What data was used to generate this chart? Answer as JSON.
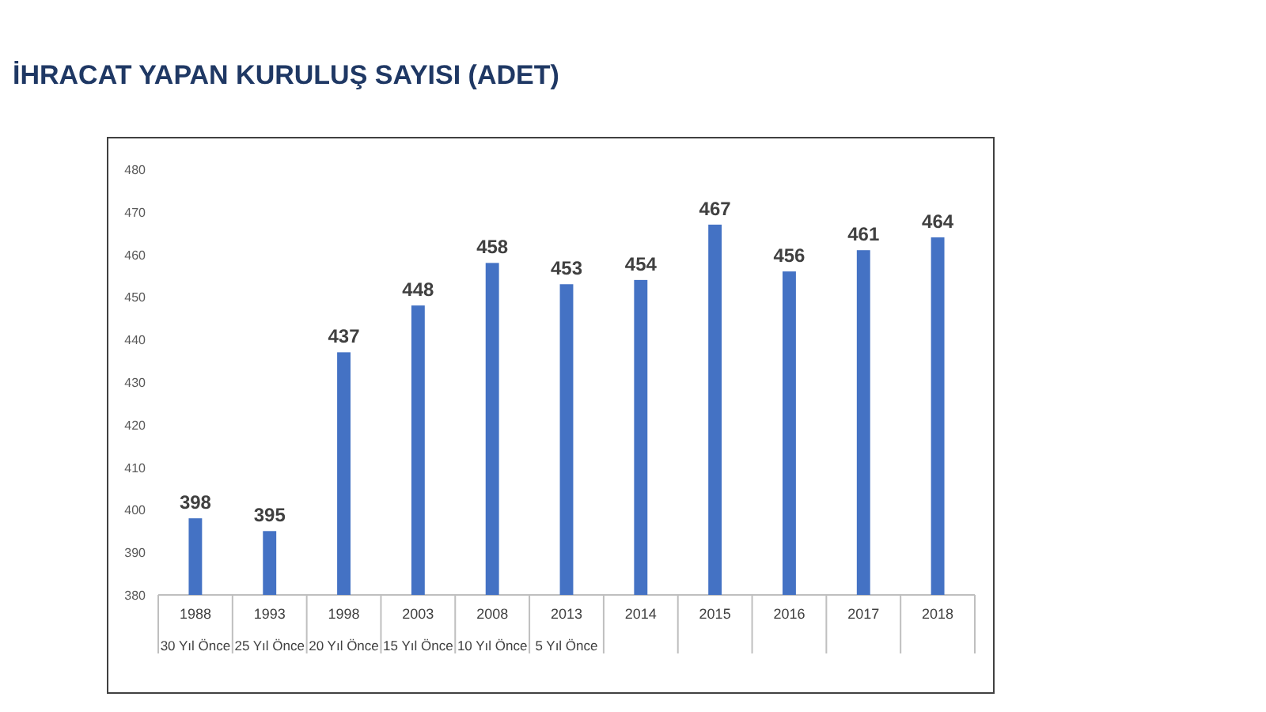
{
  "chart_data": {
    "type": "bar",
    "title": "İHRACAT YAPAN KURULUŞ SAYISI (ADET)",
    "categories": [
      "1988",
      "1993",
      "1998",
      "2003",
      "2008",
      "2013",
      "2014",
      "2015",
      "2016",
      "2017",
      "2018"
    ],
    "values": [
      398,
      395,
      437,
      448,
      458,
      453,
      454,
      467,
      456,
      461,
      464
    ],
    "color": "#4472c4",
    "ylim": [
      380,
      480
    ],
    "yticks": [
      380,
      390,
      400,
      410,
      420,
      430,
      440,
      450,
      460,
      470,
      480
    ],
    "data_labels": true,
    "annotations": [
      "30 Yıl Önce",
      "25 Yıl Önce",
      "20 Yıl Önce",
      "15 Yıl Önce",
      "10 Yıl Önce",
      "5 Yıl Önce"
    ]
  }
}
